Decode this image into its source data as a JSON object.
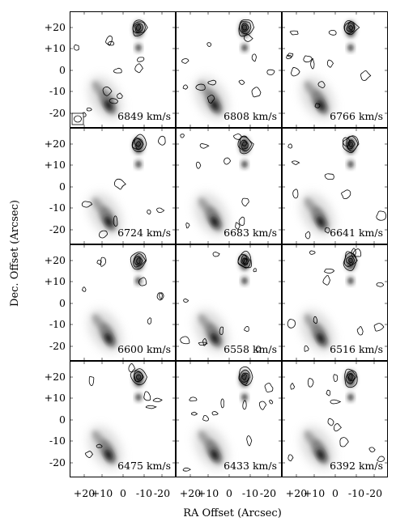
{
  "figure": {
    "x_axis_label": "RA Offset (Arcsec)",
    "y_axis_label": "Dec. Offset (Arcsec)",
    "x_tick_labels": [
      "+20",
      "+10",
      "0",
      "-10",
      "-20"
    ],
    "y_tick_labels": [
      "+20",
      "+10",
      "0",
      "-10",
      "-20"
    ],
    "panels": [
      {
        "velocity": "6849 km/s",
        "has_beam": true
      },
      {
        "velocity": "6808 km/s"
      },
      {
        "velocity": "6766 km/s"
      },
      {
        "velocity": "6724 km/s"
      },
      {
        "velocity": "6683 km/s"
      },
      {
        "velocity": "6641 km/s"
      },
      {
        "velocity": "6600 km/s"
      },
      {
        "velocity": "6558 km/s"
      },
      {
        "velocity": "6516 km/s"
      },
      {
        "velocity": "6475 km/s"
      },
      {
        "velocity": "6433 km/s"
      },
      {
        "velocity": "6392 km/s"
      }
    ]
  }
}
